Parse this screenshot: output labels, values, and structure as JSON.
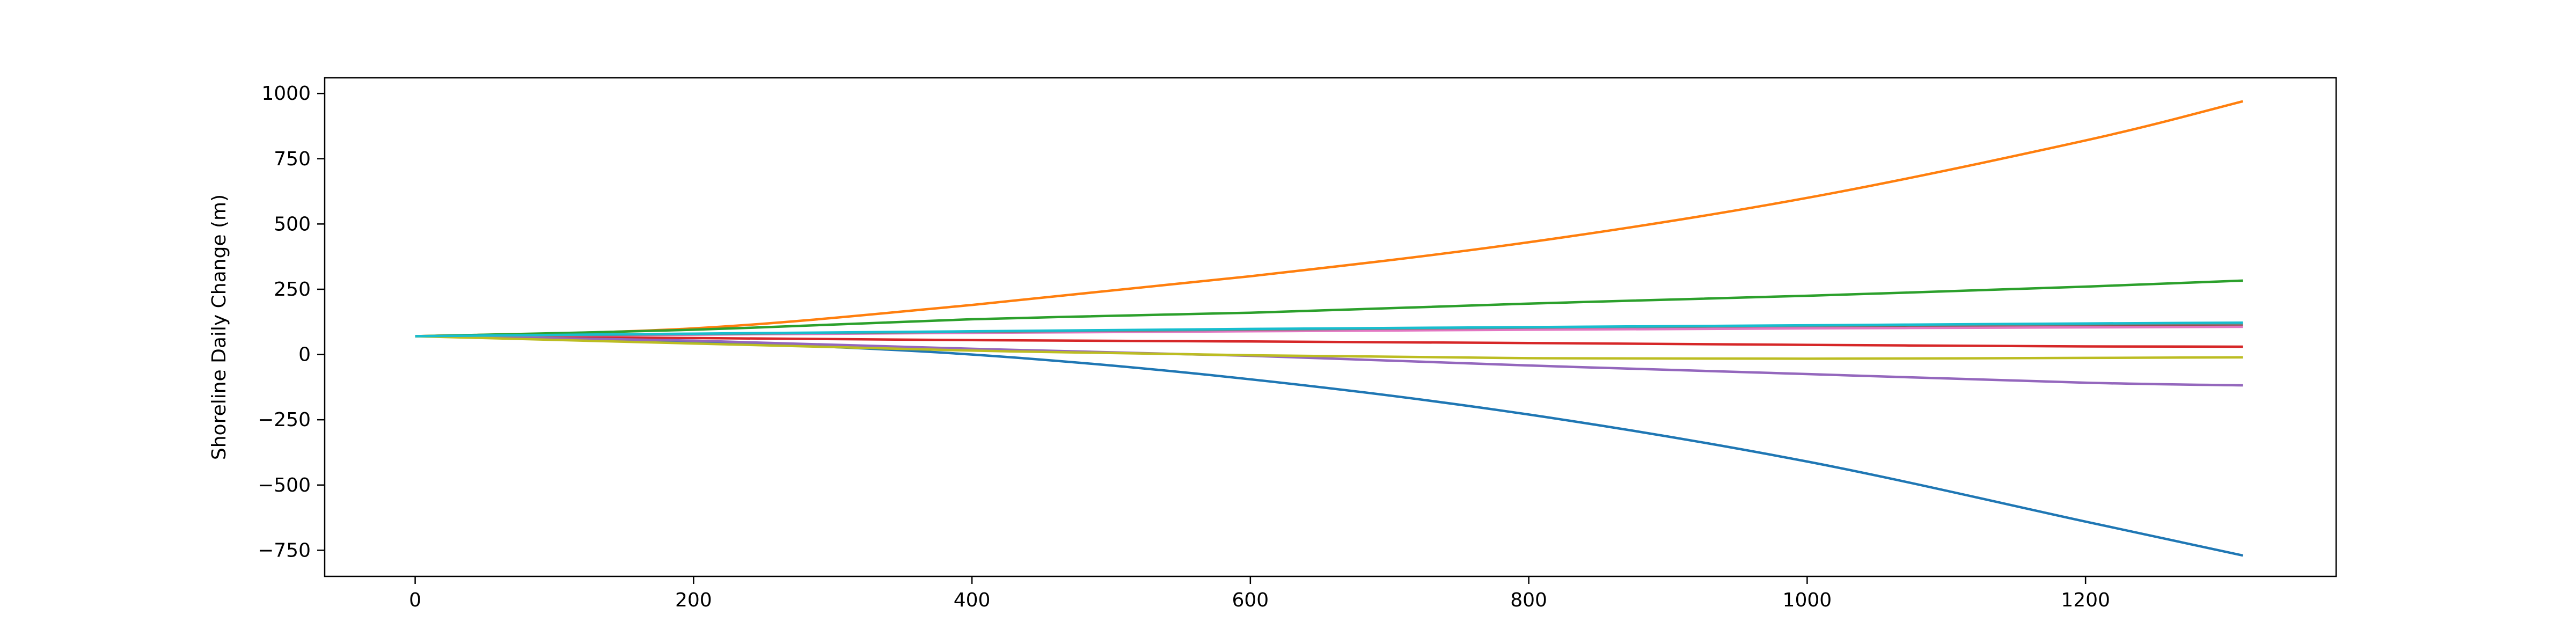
{
  "chart_data": {
    "type": "line",
    "title": "",
    "xlabel": "",
    "ylabel": "Shoreline Daily Change (m)",
    "xlim": [
      -65,
      1380
    ],
    "ylim": [
      -850,
      1060
    ],
    "x_ticks": [
      0,
      200,
      400,
      600,
      800,
      1000,
      1200
    ],
    "y_ticks": [
      -750,
      -500,
      -250,
      0,
      250,
      500,
      750,
      1000
    ],
    "grid": false,
    "legend": "none",
    "x": [
      0,
      200,
      400,
      600,
      800,
      1000,
      1200,
      1313
    ],
    "series": [
      {
        "color": "#1f77b4",
        "values": [
          70,
          48,
          0,
          -95,
          -230,
          -410,
          -640,
          -770
        ]
      },
      {
        "color": "#ff7f0e",
        "values": [
          70,
          100,
          190,
          300,
          430,
          600,
          820,
          970
        ]
      },
      {
        "color": "#2ca02c",
        "values": [
          70,
          95,
          135,
          160,
          195,
          225,
          260,
          283
        ]
      },
      {
        "color": "#d62728",
        "values": [
          70,
          63,
          55,
          50,
          44,
          37,
          31,
          30
        ]
      },
      {
        "color": "#9467bd",
        "values": [
          70,
          53,
          22,
          -5,
          -42,
          -75,
          -108,
          -118
        ]
      },
      {
        "color": "#8c564b",
        "values": [
          70,
          77,
          85,
          92,
          100,
          106,
          110,
          112
        ]
      },
      {
        "color": "#e377c2",
        "values": [
          70,
          76,
          83,
          89,
          95,
          100,
          104,
          106
        ]
      },
      {
        "color": "#7f7f7f",
        "values": [
          70,
          78,
          87,
          95,
          103,
          110,
          116,
          119
        ]
      },
      {
        "color": "#bcbd22",
        "values": [
          70,
          42,
          15,
          -3,
          -14,
          -16,
          -13,
          -11
        ]
      },
      {
        "color": "#17becf",
        "values": [
          70,
          80,
          89,
          98,
          105,
          112,
          119,
          122
        ]
      }
    ]
  }
}
